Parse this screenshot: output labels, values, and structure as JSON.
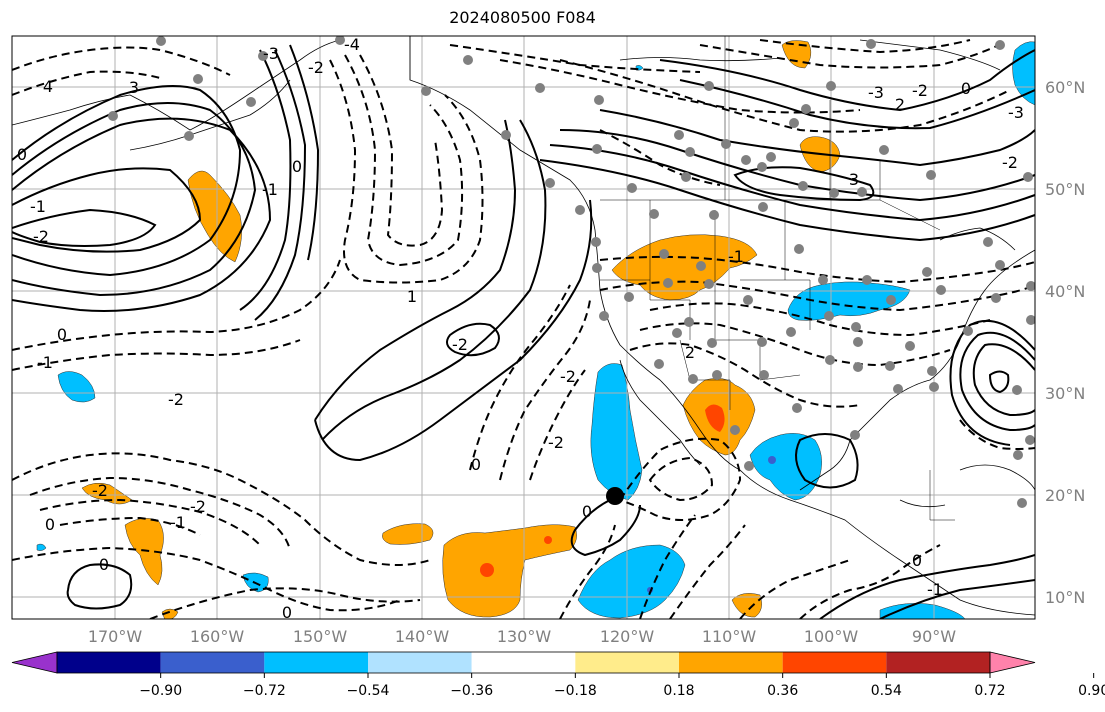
{
  "title": "2024080500 F084",
  "lat_labels": [
    "60°N",
    "50°N",
    "40°N",
    "30°N",
    "20°N",
    "10°N"
  ],
  "lon_labels": [
    "170°W",
    "160°W",
    "150°W",
    "140°W",
    "130°W",
    "120°W",
    "110°W",
    "100°W",
    "90°W"
  ],
  "colorbar": {
    "colors": [
      "#9932CC",
      "#00008B",
      "#3A5FCD",
      "#00BFFF",
      "#B0E2FF",
      "#FFFFFF",
      "#FFEC8B",
      "#FFA500",
      "#FF4500",
      "#B22222",
      "#FF82AB"
    ],
    "ticks": [
      "−0.90",
      "−0.72",
      "−0.54",
      "−0.36",
      "−0.18",
      "0.18",
      "0.36",
      "0.54",
      "0.72",
      "0.90"
    ]
  },
  "contour_labels": [
    "4",
    "3",
    "-4",
    "-3",
    "-2",
    "0",
    "-1",
    "-2",
    "0",
    "-1",
    "1",
    "-2",
    "-1",
    "0",
    "-2",
    "0",
    "-2",
    "-1",
    "0",
    "-2",
    "3",
    "2",
    "-3",
    "-2",
    "0",
    "-2",
    "-3",
    "-2",
    "0",
    "-2",
    "0",
    "-1",
    "0",
    "0",
    "2",
    "-1"
  ],
  "colors": {
    "shade_orange": "#FFA500",
    "shade_red": "#FF4500",
    "shade_blue": "#00BFFF",
    "shade_violet": "#3A5FCD",
    "stations": "#808080",
    "grid": "#b0b0b0"
  }
}
